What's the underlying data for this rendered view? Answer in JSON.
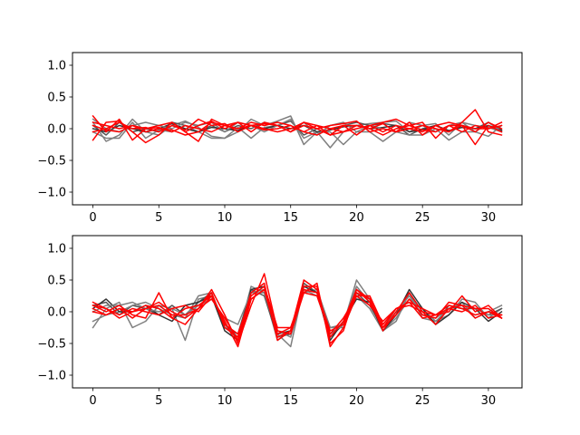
{
  "chart_data": [
    {
      "type": "line",
      "title": "",
      "xlabel": "",
      "ylabel": "",
      "xlim": [
        -1.55,
        32.55
      ],
      "ylim": [
        -1.2,
        1.2
      ],
      "xticks": [
        0,
        5,
        10,
        15,
        20,
        25,
        30
      ],
      "yticks": [
        -1.0,
        -0.5,
        0.0,
        0.5,
        1.0
      ],
      "xtick_labels": [
        "0",
        "5",
        "10",
        "15",
        "20",
        "25",
        "30"
      ],
      "ytick_labels": [
        "−1.0",
        "−0.5",
        "0.0",
        "0.5",
        "1.0"
      ],
      "grid": false,
      "legend": "none",
      "series_colors": [
        "#7f7f7f",
        "#555555",
        "#7f7f7f",
        "#333333",
        "#7f7f7f",
        "#ff0000",
        "#ff0000",
        "#ff0000",
        "#ff0000",
        "#ff0000"
      ],
      "series": [
        {
          "values": [
            0.1,
            -0.2,
            -0.1,
            0.15,
            -0.05,
            -0.1,
            0.05,
            0.12,
            0.02,
            -0.12,
            -0.15,
            -0.05,
            0.15,
            0.05,
            0.12,
            0.2,
            -0.25,
            -0.05,
            -0.3,
            -0.05,
            0.05,
            0.08,
            0.1,
            0.12,
            -0.05,
            0.05,
            0.08,
            -0.1,
            0.1,
            0.05,
            0.02,
            -0.05
          ]
        },
        {
          "values": [
            0.05,
            -0.1,
            0.1,
            -0.05,
            0.0,
            -0.05,
            0.1,
            0.05,
            -0.05,
            0.05,
            -0.05,
            0.05,
            0.0,
            0.1,
            0.05,
            0.12,
            -0.1,
            0.0,
            -0.1,
            0.05,
            0.1,
            0.05,
            0.08,
            0.05,
            -0.1,
            0.0,
            0.05,
            -0.05,
            0.05,
            0.0,
            0.1,
            -0.02
          ]
        },
        {
          "values": [
            -0.05,
            -0.15,
            -0.15,
            0.1,
            -0.15,
            -0.02,
            -0.05,
            0.05,
            -0.05,
            -0.15,
            -0.15,
            0.02,
            -0.15,
            0.02,
            0.05,
            0.15,
            -0.15,
            -0.05,
            -0.05,
            -0.25,
            -0.05,
            -0.05,
            -0.2,
            -0.05,
            -0.1,
            -0.1,
            0.0,
            -0.18,
            -0.05,
            -0.05,
            -0.12,
            0.05
          ]
        },
        {
          "values": [
            0.0,
            -0.05,
            0.05,
            0.0,
            -0.05,
            0.0,
            0.08,
            0.0,
            -0.05,
            0.02,
            0.0,
            -0.03,
            0.05,
            0.0,
            0.05,
            0.0,
            0.05,
            -0.05,
            -0.02,
            0.03,
            0.05,
            0.0,
            0.02,
            0.05,
            -0.05,
            -0.02,
            0.05,
            -0.03,
            0.02,
            0.0,
            0.05,
            -0.03
          ]
        },
        {
          "values": [
            0.15,
            0.0,
            -0.05,
            0.05,
            0.1,
            0.05,
            0.0,
            0.1,
            0.05,
            0.1,
            -0.05,
            0.1,
            0.05,
            -0.05,
            0.05,
            -0.05,
            0.1,
            -0.1,
            0.05,
            0.1,
            -0.05,
            0.05,
            0.0,
            -0.05,
            0.1,
            0.05,
            -0.05,
            0.05,
            0.1,
            -0.05,
            0.1,
            -0.05
          ]
        },
        {
          "values": [
            0.2,
            -0.05,
            0.15,
            -0.18,
            0.0,
            0.05,
            0.1,
            -0.05,
            -0.2,
            0.15,
            0.05,
            0.1,
            -0.05,
            0.1,
            0.05,
            -0.05,
            0.1,
            0.0,
            -0.1,
            0.05,
            -0.1,
            0.05,
            0.1,
            0.15,
            0.05,
            0.1,
            -0.15,
            0.05,
            0.05,
            -0.25,
            0.05,
            -0.05
          ]
        },
        {
          "values": [
            -0.18,
            0.1,
            0.12,
            -0.05,
            -0.22,
            -0.1,
            0.1,
            -0.05,
            0.05,
            0.12,
            0.0,
            0.1,
            0.05,
            0.08,
            0.05,
            -0.05,
            0.05,
            0.0,
            0.05,
            0.08,
            0.12,
            -0.05,
            0.0,
            -0.05,
            0.1,
            -0.1,
            0.05,
            -0.05,
            0.1,
            0.3,
            -0.05,
            -0.1
          ]
        },
        {
          "values": [
            0.1,
            0.05,
            0.0,
            0.05,
            -0.05,
            0.0,
            -0.02,
            -0.1,
            -0.05,
            0.1,
            0.05,
            0.0,
            0.1,
            0.05,
            0.1,
            0.05,
            -0.05,
            0.05,
            0.0,
            -0.05,
            0.05,
            0.0,
            -0.1,
            0.0,
            0.05,
            -0.02,
            -0.05,
            0.05,
            -0.05,
            0.05,
            0.0,
            0.1
          ]
        },
        {
          "values": [
            -0.05,
            0.0,
            0.1,
            0.0,
            0.02,
            -0.05,
            0.05,
            -0.02,
            0.15,
            0.05,
            0.08,
            -0.05,
            0.05,
            0.0,
            -0.05,
            0.0,
            0.1,
            0.05,
            -0.1,
            -0.05,
            0.0,
            0.05,
            -0.05,
            0.05,
            0.0,
            -0.05,
            0.05,
            0.1,
            0.05,
            -0.05,
            0.1,
            0.0
          ]
        },
        {
          "values": [
            0.05,
            -0.02,
            -0.05,
            0.05,
            0.0,
            0.02,
            -0.05,
            0.05,
            0.0,
            -0.05,
            0.05,
            0.0,
            0.05,
            -0.02,
            0.0,
            0.05,
            -0.05,
            -0.1,
            0.0,
            0.05,
            0.05,
            0.0,
            0.08,
            -0.05,
            0.0,
            0.05,
            0.0,
            -0.05,
            0.05,
            0.0,
            0.0,
            0.05
          ]
        }
      ]
    },
    {
      "type": "line",
      "title": "",
      "xlabel": "",
      "ylabel": "",
      "xlim": [
        -1.55,
        32.55
      ],
      "ylim": [
        -1.2,
        1.2
      ],
      "xticks": [
        0,
        5,
        10,
        15,
        20,
        25,
        30
      ],
      "yticks": [
        -1.0,
        -0.5,
        0.0,
        0.5,
        1.0
      ],
      "xtick_labels": [
        "0",
        "5",
        "10",
        "15",
        "20",
        "25",
        "30"
      ],
      "ytick_labels": [
        "−1.0",
        "−0.5",
        "0.0",
        "0.5",
        "1.0"
      ],
      "grid": false,
      "legend": "none",
      "series_colors": [
        "#7f7f7f",
        "#555555",
        "#7f7f7f",
        "#333333",
        "#7f7f7f",
        "#ff0000",
        "#ff0000",
        "#ff0000",
        "#ff0000",
        "#ff0000"
      ],
      "series": [
        {
          "values": [
            -0.25,
            0.05,
            0.15,
            -0.25,
            -0.15,
            0.1,
            0.05,
            -0.45,
            0.2,
            0.25,
            -0.2,
            -0.4,
            0.4,
            0.3,
            -0.45,
            -0.3,
            0.3,
            0.35,
            -0.25,
            -0.2,
            0.5,
            0.2,
            -0.3,
            -0.15,
            0.3,
            -0.1,
            -0.15,
            -0.05,
            0.2,
            0.15,
            -0.1,
            0.05
          ]
        },
        {
          "values": [
            0.1,
            0.15,
            -0.05,
            0.1,
            0.05,
            -0.05,
            0.1,
            -0.05,
            0.15,
            0.3,
            -0.25,
            -0.35,
            0.35,
            0.25,
            -0.4,
            -0.35,
            0.45,
            0.3,
            -0.4,
            -0.2,
            0.3,
            0.1,
            -0.25,
            -0.05,
            0.3,
            0.0,
            -0.2,
            0.1,
            0.05,
            0.05,
            -0.05,
            0.05
          ]
        },
        {
          "values": [
            -0.15,
            -0.05,
            0.0,
            0.1,
            0.15,
            0.05,
            -0.05,
            -0.1,
            0.25,
            0.3,
            -0.2,
            -0.45,
            0.3,
            0.3,
            -0.35,
            -0.55,
            0.4,
            0.3,
            -0.25,
            -0.25,
            0.25,
            0.05,
            -0.3,
            -0.1,
            0.2,
            0.05,
            -0.15,
            0.05,
            0.15,
            -0.1,
            0.0,
            0.1
          ]
        },
        {
          "values": [
            0.05,
            0.2,
            0.0,
            0.0,
            0.1,
            -0.05,
            -0.15,
            0.1,
            0.15,
            0.25,
            -0.3,
            -0.45,
            0.35,
            0.4,
            -0.35,
            -0.3,
            0.4,
            0.3,
            -0.45,
            -0.15,
            0.2,
            0.15,
            -0.3,
            -0.05,
            0.35,
            0.05,
            -0.2,
            -0.05,
            0.15,
            0.05,
            -0.15,
            0.0
          ]
        },
        {
          "values": [
            0.0,
            0.1,
            0.1,
            0.15,
            0.05,
            0.0,
            0.05,
            -0.05,
            0.1,
            0.2,
            -0.1,
            -0.2,
            0.3,
            0.35,
            -0.3,
            -0.4,
            0.35,
            0.25,
            -0.35,
            -0.2,
            0.4,
            0.15,
            -0.25,
            0.0,
            0.25,
            -0.05,
            -0.1,
            0.05,
            0.1,
            0.05,
            -0.05,
            -0.05
          ]
        },
        {
          "values": [
            0.1,
            0.0,
            0.1,
            -0.05,
            -0.1,
            0.3,
            -0.1,
            -0.2,
            0.05,
            0.35,
            -0.05,
            -0.5,
            0.1,
            0.6,
            -0.3,
            -0.35,
            0.3,
            0.45,
            -0.55,
            -0.25,
            0.25,
            0.25,
            -0.2,
            0.05,
            0.15,
            0.05,
            -0.05,
            0.0,
            0.25,
            0.0,
            0.1,
            -0.1
          ]
        },
        {
          "values": [
            0.15,
            0.05,
            -0.1,
            0.0,
            0.1,
            0.05,
            -0.1,
            0.05,
            0.1,
            0.25,
            -0.15,
            -0.55,
            0.2,
            0.35,
            -0.4,
            -0.3,
            0.5,
            0.35,
            -0.4,
            -0.15,
            0.35,
            0.2,
            -0.3,
            0.0,
            0.3,
            0.0,
            -0.2,
            0.05,
            0.0,
            0.1,
            -0.1,
            -0.05
          ]
        },
        {
          "values": [
            0.05,
            -0.05,
            0.05,
            -0.1,
            0.05,
            0.15,
            0.0,
            -0.1,
            0.05,
            0.3,
            -0.25,
            -0.4,
            0.3,
            0.45,
            -0.45,
            -0.3,
            0.4,
            0.4,
            -0.5,
            -0.3,
            0.35,
            0.15,
            -0.25,
            -0.05,
            0.2,
            -0.05,
            -0.1,
            0.15,
            0.1,
            -0.1,
            0.0,
            -0.1
          ]
        },
        {
          "values": [
            0.1,
            0.05,
            -0.05,
            0.05,
            0.0,
            -0.05,
            0.05,
            0.1,
            0.0,
            0.25,
            -0.2,
            -0.35,
            0.25,
            0.4,
            -0.25,
            -0.25,
            0.3,
            0.25,
            -0.35,
            -0.1,
            0.25,
            0.1,
            -0.15,
            0.05,
            0.15,
            -0.1,
            -0.05,
            0.05,
            0.1,
            0.05,
            0.05,
            -0.1
          ]
        },
        {
          "values": [
            0.0,
            -0.05,
            0.05,
            0.0,
            0.05,
            0.1,
            -0.05,
            -0.05,
            0.05,
            0.2,
            -0.1,
            -0.45,
            0.2,
            0.35,
            -0.35,
            -0.25,
            0.35,
            0.3,
            -0.3,
            -0.2,
            0.3,
            0.2,
            -0.25,
            0.05,
            0.1,
            0.0,
            -0.05,
            0.1,
            0.05,
            -0.05,
            0.0,
            -0.05
          ]
        }
      ]
    }
  ]
}
